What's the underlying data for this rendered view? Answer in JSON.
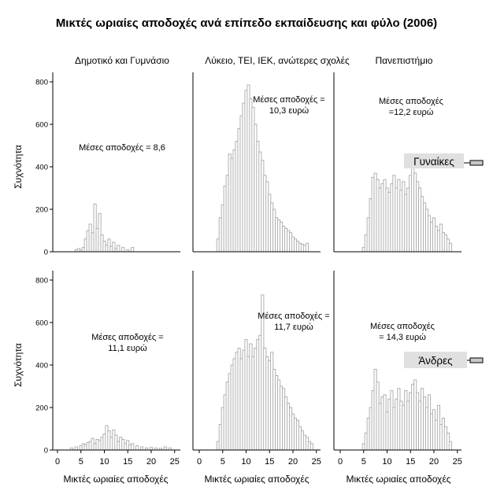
{
  "title": "Μικτές ωριαίες αποδοχές ανά επίπεδο εκπαίδευσης και φύλο (2006)",
  "columns": [
    "Δημοτικό και Γυμνάσιο",
    "Λύκειο, ΤΕΙ, ΙΕΚ, ανώτερες σχολές",
    "Πανεπιστήμιο"
  ],
  "rows": [
    "Γυναίκες",
    "Άνδρες"
  ],
  "ylabel": "Συχνότητα",
  "xlabel": "Μικτές ωριαίες αποδοχές",
  "xticks": [
    "0",
    "5",
    "10",
    "15",
    "20",
    "25"
  ],
  "yticks": [
    "0",
    "200",
    "400",
    "600",
    "800"
  ],
  "annotations": [
    [
      "Μέσες αποδοχές = 8,6",
      "Μέσες αποδοχές =|10,3 ευρώ",
      "Μέσες αποδοχές|=12,2 ευρώ"
    ],
    [
      "Μέσες αποδοχές =|11,1 ευρώ",
      "Μέσες αποδοχές =|11,7 ευρώ",
      "Μέσες αποδοχές|= 14,3 ευρώ"
    ]
  ],
  "colors": {
    "bar_fill": "#ffffff",
    "bar_stroke": "#a8a8a8",
    "axis": "#000000",
    "legend_box": "#e0e0e0",
    "legend_swatch": "#c8c8c8"
  },
  "chart_data": {
    "type": "bar",
    "title": "Μικτές ωριαίες αποδοχές ανά επίπεδο εκπαίδευσης και φύλο (2006)",
    "xlabel": "Μικτές ωριαίες αποδοχές",
    "ylabel": "Συχνότητα",
    "xlim": [
      -2,
      26
    ],
    "ylim": [
      0,
      850
    ],
    "grid": false,
    "legend": "right",
    "panels": [
      {
        "row": "Γυναίκες",
        "column": "Δημοτικό και Γυμνάσιο",
        "annotation": "Μέσες αποδοχές = 8,6",
        "x": [
          4,
          4.5,
          5,
          5.5,
          6,
          6.5,
          7,
          7.5,
          8,
          8.5,
          9,
          9.5,
          10,
          10.5,
          11,
          11.5,
          12,
          12.5,
          13,
          14,
          15,
          16
        ],
        "values": [
          10,
          15,
          8,
          20,
          60,
          100,
          130,
          90,
          225,
          110,
          180,
          80,
          50,
          30,
          60,
          25,
          45,
          15,
          30,
          20,
          10,
          20
        ]
      },
      {
        "row": "Γυναίκες",
        "column": "Λύκειο, ΤΕΙ, ΙΕΚ, ανώτερες σχολές",
        "annotation": "Μέσες αποδοχές = 10,3 ευρώ",
        "x": [
          4,
          4.5,
          5,
          5.5,
          6,
          6.5,
          7,
          7.5,
          8,
          8.5,
          9,
          9.5,
          10,
          10.5,
          11,
          11.5,
          12,
          12.5,
          13,
          13.5,
          14,
          14.5,
          15,
          15.5,
          16,
          16.5,
          17,
          17.5,
          18,
          18.5,
          19,
          19.5,
          20,
          20.5,
          21,
          21.5,
          22,
          22.5,
          23
        ],
        "values": [
          60,
          160,
          220,
          310,
          360,
          460,
          440,
          480,
          520,
          580,
          640,
          700,
          760,
          785,
          720,
          680,
          600,
          520,
          470,
          430,
          360,
          330,
          270,
          230,
          200,
          160,
          150,
          140,
          120,
          110,
          100,
          90,
          70,
          60,
          50,
          40,
          35,
          30,
          40
        ]
      },
      {
        "row": "Γυναίκες",
        "column": "Πανεπιστήμιο",
        "annotation": "Μέσες αποδοχές = 12,2 ευρώ",
        "x": [
          5,
          5.5,
          6,
          6.5,
          7,
          7.5,
          8,
          8.5,
          9,
          9.5,
          10,
          10.5,
          11,
          11.5,
          12,
          12.5,
          13,
          13.5,
          14,
          14.5,
          15,
          15.5,
          16,
          16.5,
          17,
          17.5,
          18,
          18.5,
          19,
          19.5,
          20,
          20.5,
          21,
          21.5,
          22,
          22.5,
          23,
          23.5
        ],
        "values": [
          20,
          80,
          160,
          250,
          350,
          370,
          340,
          300,
          320,
          340,
          300,
          280,
          320,
          360,
          300,
          340,
          290,
          330,
          270,
          300,
          360,
          410,
          370,
          330,
          300,
          260,
          230,
          200,
          170,
          140,
          160,
          120,
          100,
          130,
          90,
          80,
          60,
          40
        ]
      },
      {
        "row": "Άνδρες",
        "column": "Δημοτικό και Γυμνάσιο",
        "annotation": "Μέσες αποδοχές = 11,1 ευρώ",
        "x": [
          3,
          4,
          5,
          5.5,
          6,
          6.5,
          7,
          7.5,
          8,
          8.5,
          9,
          9.5,
          10,
          10.5,
          11,
          11.5,
          12,
          12.5,
          13,
          13.5,
          14,
          14.5,
          15,
          15.5,
          16,
          17,
          18,
          19,
          20,
          21,
          22,
          23,
          24
        ],
        "values": [
          10,
          15,
          20,
          30,
          25,
          35,
          40,
          55,
          30,
          50,
          45,
          60,
          75,
          115,
          90,
          60,
          95,
          70,
          40,
          60,
          50,
          30,
          45,
          25,
          30,
          20,
          15,
          10,
          12,
          10,
          8,
          15,
          10
        ]
      },
      {
        "row": "Άνδρες",
        "column": "Λύκειο, ΤΕΙ, ΙΕΚ, ανώτερες σχολές",
        "annotation": "Μέσες αποδοχές = 11,7 ευρώ",
        "x": [
          4,
          4.5,
          5,
          5.5,
          6,
          6.5,
          7,
          7.5,
          8,
          8.5,
          9,
          9.5,
          10,
          10.5,
          11,
          11.5,
          12,
          12.5,
          13,
          13.5,
          14,
          14.5,
          15,
          15.5,
          16,
          16.5,
          17,
          17.5,
          18,
          18.5,
          19,
          19.5,
          20,
          20.5,
          21,
          21.5,
          22,
          22.5,
          23,
          23.5,
          24
        ],
        "values": [
          40,
          120,
          200,
          260,
          320,
          360,
          400,
          430,
          460,
          480,
          430,
          470,
          520,
          440,
          500,
          440,
          480,
          520,
          540,
          730,
          480,
          440,
          420,
          460,
          380,
          350,
          330,
          300,
          290,
          250,
          220,
          200,
          170,
          150,
          140,
          110,
          90,
          70,
          60,
          40,
          30
        ]
      },
      {
        "row": "Άνδρες",
        "column": "Πανεπιστήμιο",
        "annotation": "Μέσες αποδοχές = 14,3 ευρώ",
        "x": [
          5,
          5.5,
          6,
          6.5,
          7,
          7.5,
          8,
          8.5,
          9,
          9.5,
          10,
          10.5,
          11,
          11.5,
          12,
          12.5,
          13,
          13.5,
          14,
          14.5,
          15,
          15.5,
          16,
          16.5,
          17,
          17.5,
          18,
          18.5,
          19,
          19.5,
          20,
          20.5,
          21,
          21.5,
          22,
          22.5,
          23,
          23.5
        ],
        "values": [
          30,
          80,
          150,
          200,
          280,
          380,
          320,
          220,
          250,
          260,
          180,
          240,
          280,
          200,
          240,
          290,
          230,
          210,
          280,
          230,
          270,
          310,
          330,
          270,
          230,
          290,
          250,
          200,
          260,
          170,
          190,
          140,
          210,
          120,
          150,
          110,
          80,
          40
        ]
      }
    ]
  }
}
